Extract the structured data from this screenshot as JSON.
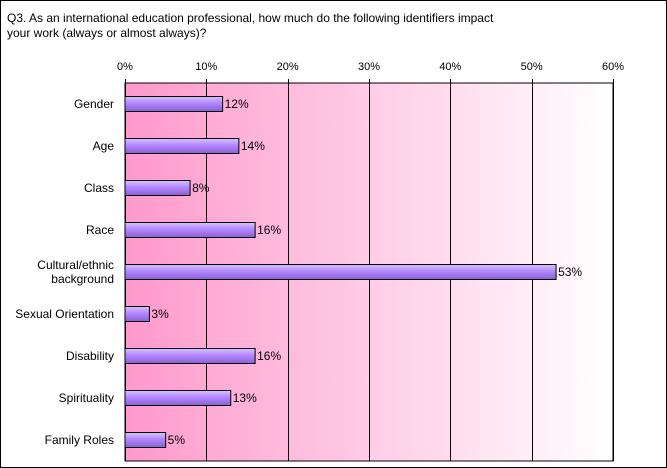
{
  "chart_data": {
    "type": "bar",
    "orientation": "horizontal",
    "title": "Q3.  As an international education professional, how much do the following identifiers impact\nyour work (always or almost always)?",
    "categories": [
      "Gender",
      "Age",
      "Class",
      "Race",
      "Cultural/ethnic\nbackground",
      "Sexual Orientation",
      "Disability",
      "Spirituality",
      "Family Roles"
    ],
    "values": [
      12,
      14,
      8,
      16,
      53,
      3,
      16,
      13,
      5
    ],
    "data_labels": [
      "12%",
      "14%",
      "8%",
      "16%",
      "53%",
      "3%",
      "16%",
      "13%",
      "5%"
    ],
    "xlim": [
      0,
      60
    ],
    "xticks": [
      0,
      10,
      20,
      30,
      40,
      50,
      60
    ],
    "xtick_labels": [
      "0%",
      "10%",
      "20%",
      "30%",
      "40%",
      "50%",
      "60%"
    ],
    "x_axis_position": "top",
    "grid": true,
    "colors": {
      "bar_fill": "#b388ff",
      "bar_stroke": "#000000",
      "plot_gradient_start": "#ff99cc",
      "plot_gradient_end": "#ffffff"
    }
  }
}
